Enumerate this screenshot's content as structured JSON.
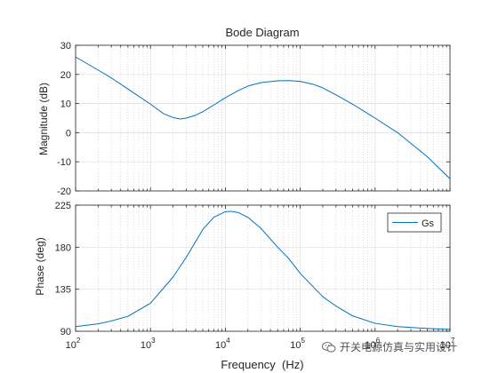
{
  "chart_data": [
    {
      "type": "line",
      "panel": "magnitude",
      "title": "Bode Diagram",
      "xlabel": "",
      "ylabel": "Magnitude (dB)",
      "xscale": "log",
      "xlim": [
        100,
        10000000
      ],
      "ylim": [
        -20,
        30
      ],
      "yticks": [
        -20,
        -10,
        0,
        10,
        20,
        30
      ],
      "xticks": [
        100,
        1000,
        10000,
        100000,
        1000000,
        10000000
      ],
      "grid": true,
      "series": [
        {
          "color": "#0072BD",
          "x": [
            100,
            200,
            300,
            500,
            1000,
            1500,
            2000,
            2500,
            3000,
            4000,
            5000,
            7000,
            10000,
            15000,
            20000,
            30000,
            50000,
            70000,
            100000,
            150000,
            200000,
            300000,
            500000,
            1000000,
            2000000,
            5000000,
            10000000
          ],
          "y": [
            26,
            21.5,
            18.8,
            15,
            9.8,
            6.5,
            5.2,
            4.7,
            5,
            6,
            7.2,
            9.5,
            12,
            14.5,
            16,
            17.2,
            17.8,
            17.9,
            17.6,
            16.6,
            15.4,
            13,
            9.8,
            5,
            0,
            -8.3,
            -15.8
          ]
        }
      ]
    },
    {
      "type": "line",
      "panel": "phase",
      "title": "",
      "xlabel": "Frequency  (Hz)",
      "ylabel": "Phase (deg)",
      "xscale": "log",
      "xlim": [
        100,
        10000000
      ],
      "ylim": [
        90,
        225
      ],
      "yticks": [
        90,
        135,
        180,
        225
      ],
      "xticks": [
        100,
        1000,
        10000,
        100000,
        1000000,
        10000000
      ],
      "grid": true,
      "legend": "top-right",
      "series": [
        {
          "name": "Gs",
          "color": "#0072BD",
          "x": [
            100,
            200,
            300,
            500,
            1000,
            2000,
            3000,
            5000,
            7000,
            10000,
            12000,
            15000,
            20000,
            30000,
            50000,
            70000,
            100000,
            200000,
            300000,
            500000,
            1000000,
            2000000,
            5000000,
            10000000
          ],
          "y": [
            95,
            98,
            101,
            106,
            120,
            148,
            169,
            199,
            212,
            218,
            218.3,
            217,
            212,
            200,
            180,
            168,
            152,
            127,
            117,
            106.5,
            98.5,
            95,
            93,
            92
          ]
        }
      ]
    }
  ],
  "watermark_text": "开关电源仿真与实用设计"
}
